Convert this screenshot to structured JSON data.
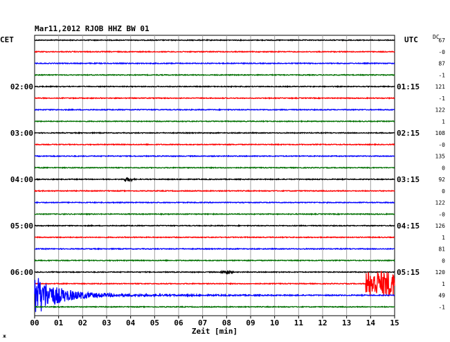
{
  "header": {
    "title": "Mar11,2012   RJOB HHZ BW 01",
    "left_zone": "CET",
    "right_zone": "UTC",
    "dc_label": "DC"
  },
  "chart_data": {
    "type": "line",
    "title": "Mar11,2012   RJOB HHZ BW 01",
    "xlabel": "Zeit [min]",
    "xlim": [
      0,
      15
    ],
    "x_tick_labels": [
      "00",
      "01",
      "02",
      "03",
      "04",
      "05",
      "06",
      "07",
      "08",
      "09",
      "10",
      "11",
      "12",
      "13",
      "14",
      "15"
    ],
    "rows_per_hour": 4,
    "row_minutes": 15,
    "row_colors": [
      "#000000",
      "#ff0000",
      "#0000ff",
      "#007000"
    ],
    "grid": true,
    "left_time_labels": [
      {
        "row": 4,
        "text": "02:00"
      },
      {
        "row": 8,
        "text": "03:00"
      },
      {
        "row": 12,
        "text": "04:00"
      },
      {
        "row": 16,
        "text": "05:00"
      },
      {
        "row": 20,
        "text": "06:00"
      }
    ],
    "right_time_labels": [
      {
        "row": 4,
        "text": "01:15"
      },
      {
        "row": 8,
        "text": "02:15"
      },
      {
        "row": 12,
        "text": "03:15"
      },
      {
        "row": 16,
        "text": "04:15"
      },
      {
        "row": 20,
        "text": "05:15"
      }
    ],
    "dc_offsets": [
      "67",
      "-0",
      "87",
      "-1",
      "121",
      "-1",
      "122",
      "1",
      "108",
      "-0",
      "135",
      "0",
      "92",
      "0",
      "122",
      "-0",
      "126",
      "1",
      "81",
      "0",
      "120",
      "1",
      "49",
      "-1"
    ],
    "events": [
      {
        "row": 12,
        "minute": 3.9,
        "kind": "local",
        "amplitude": "small"
      },
      {
        "row": 20,
        "minute": 8.0,
        "kind": "local",
        "amplitude": "small"
      },
      {
        "row": 21,
        "minute": 13.8,
        "kind": "teleseismic-onset",
        "amplitude": "large"
      },
      {
        "row": 22,
        "minute": 0.0,
        "kind": "teleseismic-coda",
        "amplitude": "very-large"
      }
    ]
  }
}
